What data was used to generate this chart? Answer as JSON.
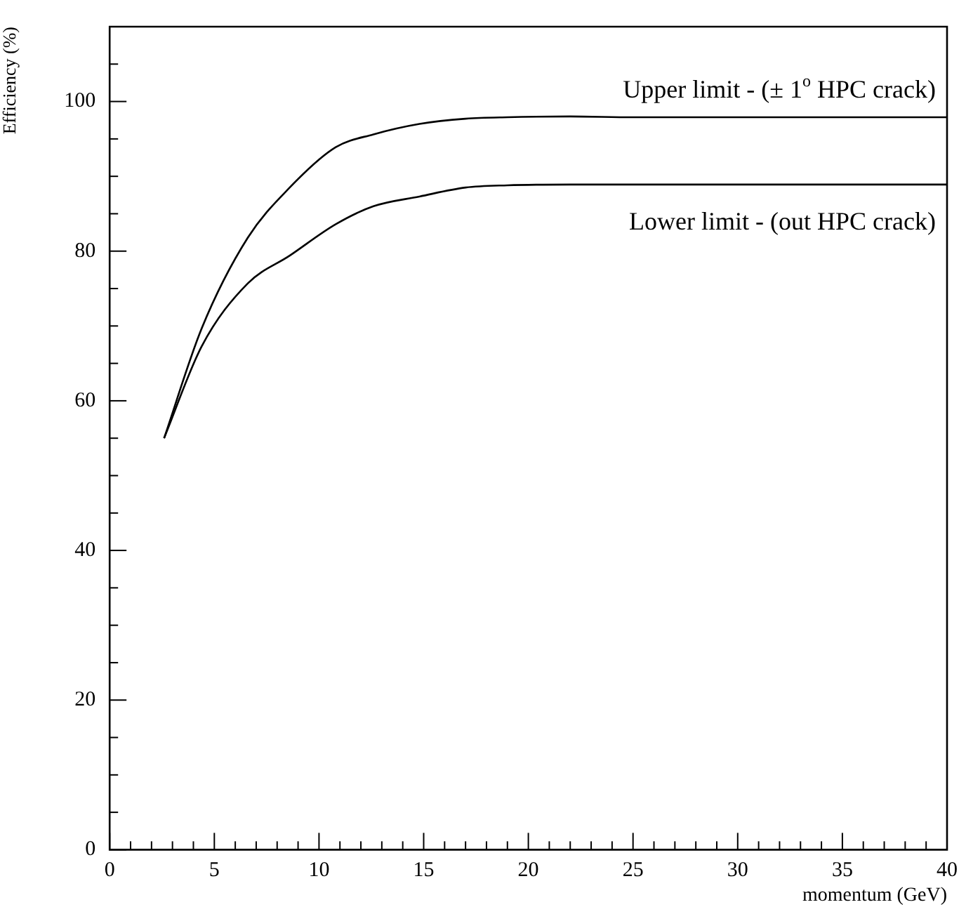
{
  "chart_data": {
    "type": "line",
    "xlabel": "momentum (GeV)",
    "ylabel": "Efficiency (%)",
    "xlim": [
      0,
      40
    ],
    "ylim": [
      0,
      110
    ],
    "xticks": [
      0,
      {
        "value": 1,
        "label": null
      },
      {
        "value": 2,
        "label": null
      },
      {
        "value": 3,
        "label": null
      },
      {
        "value": 4,
        "label": null
      },
      5,
      {
        "value": 6,
        "label": null
      },
      {
        "value": 7,
        "label": null
      },
      {
        "value": 8,
        "label": null
      },
      {
        "value": 9,
        "label": null
      },
      10,
      {
        "value": 11,
        "label": null
      },
      {
        "value": 12,
        "label": null
      },
      {
        "value": 13,
        "label": null
      },
      {
        "value": 14,
        "label": null
      },
      15,
      {
        "value": 16,
        "label": null
      },
      {
        "value": 17,
        "label": null
      },
      {
        "value": 18,
        "label": null
      },
      {
        "value": 19,
        "label": null
      },
      20,
      {
        "value": 21,
        "label": null
      },
      {
        "value": 22,
        "label": null
      },
      {
        "value": 23,
        "label": null
      },
      {
        "value": 24,
        "label": null
      },
      25,
      {
        "value": 26,
        "label": null
      },
      {
        "value": 27,
        "label": null
      },
      {
        "value": 28,
        "label": null
      },
      {
        "value": 29,
        "label": null
      },
      30,
      {
        "value": 31,
        "label": null
      },
      {
        "value": 32,
        "label": null
      },
      {
        "value": 33,
        "label": null
      },
      {
        "value": 34,
        "label": null
      },
      35,
      {
        "value": 36,
        "label": null
      },
      {
        "value": 37,
        "label": null
      },
      {
        "value": 38,
        "label": null
      },
      {
        "value": 39,
        "label": null
      },
      40
    ],
    "yticks": [
      0,
      {
        "value": 5,
        "label": null
      },
      {
        "value": 10,
        "label": null
      },
      {
        "value": 15,
        "label": null
      },
      20,
      {
        "value": 25,
        "label": null
      },
      {
        "value": 30,
        "label": null
      },
      {
        "value": 35,
        "label": null
      },
      40,
      {
        "value": 45,
        "label": null
      },
      {
        "value": 50,
        "label": null
      },
      {
        "value": 55,
        "label": null
      },
      60,
      {
        "value": 65,
        "label": null
      },
      {
        "value": 70,
        "label": null
      },
      {
        "value": 75,
        "label": null
      },
      80,
      {
        "value": 85,
        "label": null
      },
      {
        "value": 90,
        "label": null
      },
      {
        "value": 95,
        "label": null
      },
      100,
      {
        "value": 105,
        "label": null
      }
    ],
    "grid": false,
    "legend": false,
    "marker": "none",
    "line_style": "solid",
    "series": [
      {
        "name": "Upper limit - (± 1$^{o}$ HPC crack)",
        "color": "#000000",
        "x": [
          2.6,
          4.4,
          6.6,
          8.6,
          10.8,
          12.6,
          14.8,
          17,
          19,
          22,
          25,
          30,
          35,
          40
        ],
        "values": [
          55,
          69.7,
          81.8,
          88.5,
          93.9,
          95.6,
          97,
          97.7,
          97.9,
          98,
          97.9,
          97.9,
          97.9,
          97.9
        ]
      },
      {
        "name": "Lower limit - (out HPC crack)",
        "color": "#000000",
        "x": [
          2.6,
          4.4,
          6.6,
          8.6,
          10.8,
          12.6,
          14.8,
          17,
          19,
          22,
          25,
          30,
          35,
          40
        ],
        "values": [
          55,
          67.3,
          75.7,
          79.4,
          83.6,
          86,
          87.3,
          88.5,
          88.8,
          88.9,
          88.9,
          88.9,
          88.9,
          88.9
        ]
      }
    ]
  }
}
